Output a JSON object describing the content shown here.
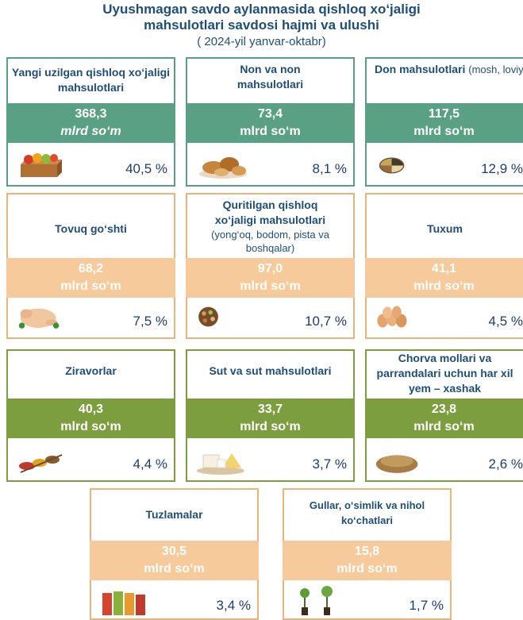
{
  "header": {
    "title_line1": "Uyushmagan savdo aylanmasida qishloq xo‘jaligi",
    "title_line2": "mahsulotlari savdosi hajmi va ulushi",
    "subtitle": "( 2024-yil yanvar-oktabr)"
  },
  "colors": {
    "teal": "#5aa085",
    "orange": "#f6ca9a",
    "olive": "#7d9e3f",
    "text": "#1f4e79"
  },
  "cards": [
    {
      "label": "Yangi uzilgan qishloq xo‘jaligi mahsulotlari",
      "note": "",
      "value": "368,3",
      "unit": "mlrd so‘m",
      "percent": "40,5 %",
      "icon": "fruit-crate-icon"
    },
    {
      "label": "Non va non mahsulotlari",
      "note": "",
      "value": "73,4",
      "unit": "mlrd so‘m",
      "percent": "8,1 %",
      "icon": "bread-icon"
    },
    {
      "label": "Don mahsulotlari",
      "note": "(mosh, loviya, guruch va boshqalar)",
      "value": "117,5",
      "unit": "mlrd so‘m",
      "percent": "12,9 %",
      "icon": "grain-icon"
    },
    {
      "label": "Tovuq go‘shti",
      "note": "",
      "value": "68,2",
      "unit": "mlrd so‘m",
      "percent": "7,5 %",
      "icon": "chicken-icon"
    },
    {
      "label": "Quritilgan qishloq xo‘jaligi mahsulotlari",
      "note": "(yong‘oq, bodom, pista va boshqalar)",
      "value": "97,0",
      "unit": "mlrd so‘m",
      "percent": "10,7 %",
      "icon": "nuts-icon"
    },
    {
      "label": "Tuxum",
      "note": "",
      "value": "41,1",
      "unit": "mlrd so‘m",
      "percent": "4,5 %",
      "icon": "eggs-icon"
    },
    {
      "label": "Ziravorlar",
      "note": "",
      "value": "40,3",
      "unit": "mlrd so‘m",
      "percent": "4,4 %",
      "icon": "spices-icon"
    },
    {
      "label": "Sut va sut mahsulotlari",
      "note": "",
      "value": "33,7",
      "unit": "mlrd so‘m",
      "percent": "3,7 %",
      "icon": "dairy-icon"
    },
    {
      "label": "Chorva mollari va parrandalari uchun har xil yem – xashak",
      "note": "",
      "value": "23,8",
      "unit": "mlrd so‘m",
      "percent": "2,6 %",
      "icon": "feed-icon"
    },
    {
      "label": "Tuzlamalar",
      "note": "",
      "value": "30,5",
      "unit": "mlrd so‘m",
      "percent": "3,4 %",
      "icon": "pickles-icon"
    },
    {
      "label": "Gullar, o‘simlik va nihol ko‘chatlari",
      "note": "",
      "value": "15,8",
      "unit": "mlrd so‘m",
      "percent": "1,7 %",
      "icon": "seedlings-icon"
    }
  ],
  "chart_data": {
    "type": "table",
    "title": "Uyushmagan savdo aylanmasida qishloq xo‘jaligi mahsulotlari savdosi hajmi va ulushi",
    "subtitle": "( 2024-yil yanvar-oktabr)",
    "columns": [
      "category",
      "value_mlrd_som",
      "share_percent"
    ],
    "rows": [
      [
        "Yangi uzilgan qishloq xo‘jaligi mahsulotlari",
        368.3,
        40.5
      ],
      [
        "Non va non mahsulotlari",
        73.4,
        8.1
      ],
      [
        "Don mahsulotlari (mosh, loviya, guruch va boshqalar)",
        117.5,
        12.9
      ],
      [
        "Tovuq go‘shti",
        68.2,
        7.5
      ],
      [
        "Quritilgan qishloq xo‘jaligi mahsulotlari (yong‘oq, bodom, pista va boshqalar)",
        97.0,
        10.7
      ],
      [
        "Tuxum",
        41.1,
        4.5
      ],
      [
        "Ziravorlar",
        40.3,
        4.4
      ],
      [
        "Sut va sut mahsulotlari",
        33.7,
        3.7
      ],
      [
        "Chorva mollari va parrandalari uchun har xil yem – xashak",
        23.8,
        2.6
      ],
      [
        "Tuzlamalar",
        30.5,
        3.4
      ],
      [
        "Gullar, o‘simlik va nihol ko‘chatlari",
        15.8,
        1.7
      ]
    ]
  }
}
